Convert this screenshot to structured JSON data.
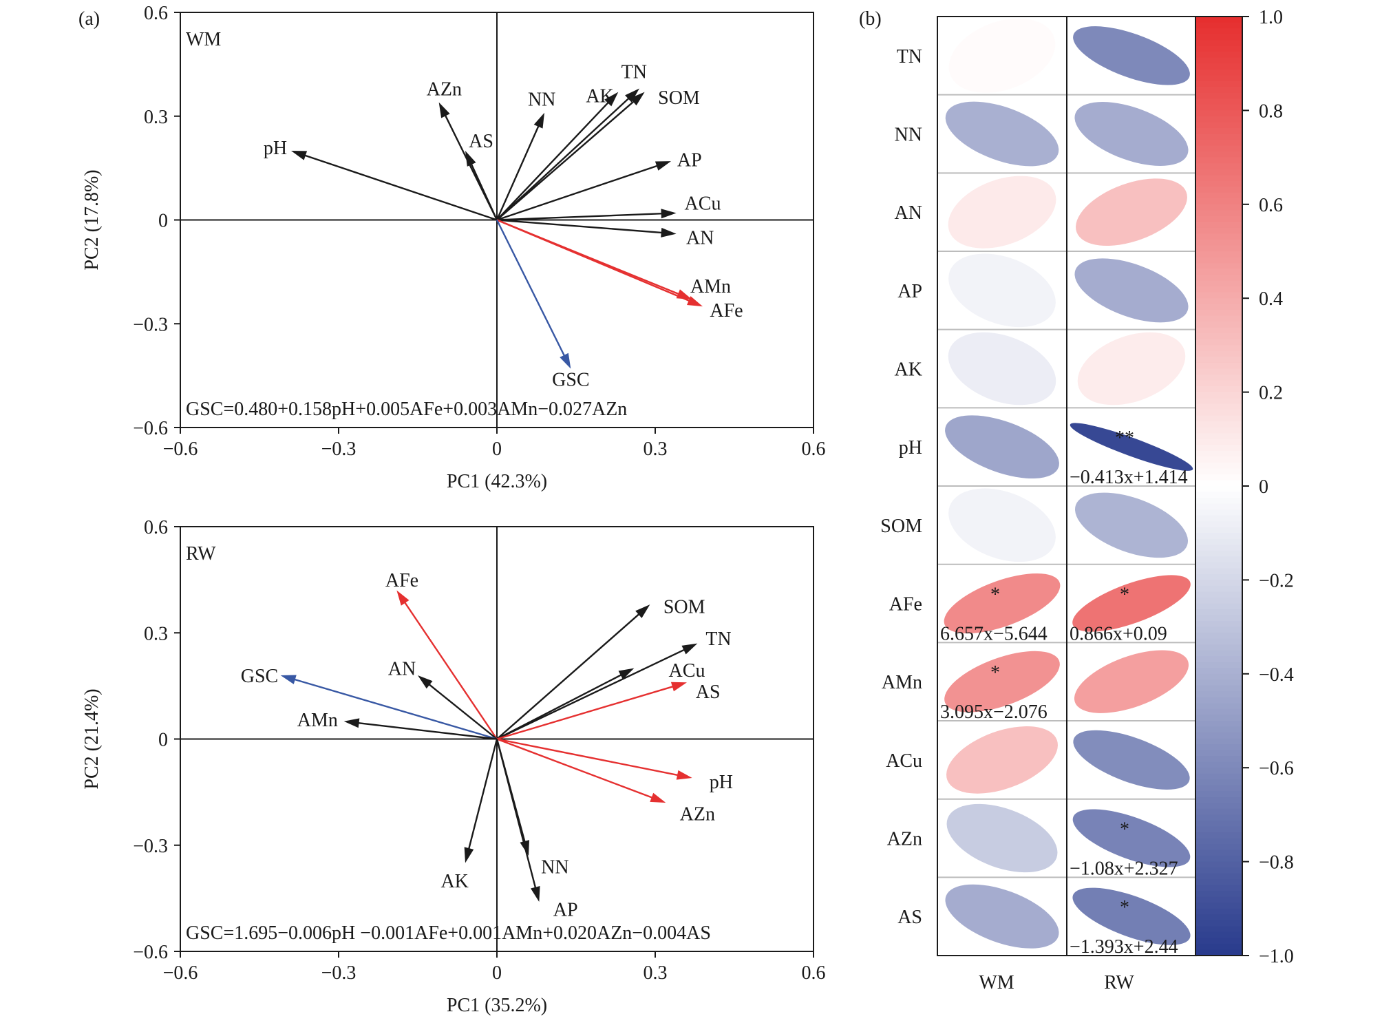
{
  "panel_labels": {
    "a": "(a)",
    "b": "(b)"
  },
  "chart_data": [
    {
      "type": "biplot",
      "panel": "a-top",
      "group_label": "WM",
      "xlabel": "PC1 (42.3%)",
      "ylabel": "PC2 (17.8%)",
      "xlim": [
        -0.6,
        0.6
      ],
      "ylim": [
        -0.6,
        0.6
      ],
      "xticks": [
        {
          "v": -0.6,
          "label": "−0.6"
        },
        {
          "v": -0.3,
          "label": "−0.3"
        },
        {
          "v": 0,
          "label": "0"
        },
        {
          "v": 0.3,
          "label": "0.3"
        },
        {
          "v": 0.6,
          "label": "0.6"
        }
      ],
      "yticks": [
        {
          "v": -0.6,
          "label": "−0.6"
        },
        {
          "v": -0.3,
          "label": "−0.3"
        },
        {
          "v": 0,
          "label": "0"
        },
        {
          "v": 0.3,
          "label": "0.3"
        },
        {
          "v": 0.6,
          "label": "0.6"
        }
      ],
      "equation": "GSC=0.480+0.158pH+0.005AFe+0.003AMn−0.027AZn",
      "vectors": [
        {
          "name": "AZn",
          "x": -0.11,
          "y": 0.34,
          "color": "#1a1a1a",
          "label_x": -0.1,
          "label_y": 0.38
        },
        {
          "name": "AS",
          "x": -0.06,
          "y": 0.2,
          "color": "#1a1a1a",
          "label_x": -0.03,
          "label_y": 0.23
        },
        {
          "name": "pH",
          "x": -0.39,
          "y": 0.2,
          "color": "#1a1a1a",
          "label_x": -0.42,
          "label_y": 0.21
        },
        {
          "name": "NN",
          "x": 0.09,
          "y": 0.31,
          "color": "#1a1a1a",
          "label_x": 0.085,
          "label_y": 0.35
        },
        {
          "name": "AK",
          "x": 0.23,
          "y": 0.37,
          "color": "#1a1a1a",
          "label_x": 0.195,
          "label_y": 0.36
        },
        {
          "name": "TN",
          "x": 0.27,
          "y": 0.38,
          "color": "#1a1a1a",
          "label_x": 0.26,
          "label_y": 0.43
        },
        {
          "name": "SOM",
          "x": 0.28,
          "y": 0.37,
          "color": "#1a1a1a",
          "label_x": 0.345,
          "label_y": 0.355
        },
        {
          "name": "AP",
          "x": 0.33,
          "y": 0.17,
          "color": "#1a1a1a",
          "label_x": 0.365,
          "label_y": 0.175
        },
        {
          "name": "ACu",
          "x": 0.34,
          "y": 0.02,
          "color": "#1a1a1a",
          "label_x": 0.39,
          "label_y": 0.05
        },
        {
          "name": "AN",
          "x": 0.34,
          "y": -0.04,
          "color": "#1a1a1a",
          "label_x": 0.385,
          "label_y": -0.05
        },
        {
          "name": "AMn",
          "x": 0.37,
          "y": -0.23,
          "color": "#e53030",
          "label_x": 0.405,
          "label_y": -0.19
        },
        {
          "name": "AFe",
          "x": 0.39,
          "y": -0.25,
          "color": "#e53030",
          "label_x": 0.435,
          "label_y": -0.26
        },
        {
          "name": "GSC",
          "x": 0.14,
          "y": -0.43,
          "color": "#3858a4",
          "label_x": 0.14,
          "label_y": -0.46
        }
      ]
    },
    {
      "type": "biplot",
      "panel": "a-bottom",
      "group_label": "RW",
      "xlabel": "PC1 (35.2%)",
      "ylabel": "PC2 (21.4%)",
      "xlim": [
        -0.6,
        0.6
      ],
      "ylim": [
        -0.6,
        0.6
      ],
      "xticks": [
        {
          "v": -0.6,
          "label": "−0.6"
        },
        {
          "v": -0.3,
          "label": "−0.3"
        },
        {
          "v": 0,
          "label": "0"
        },
        {
          "v": 0.3,
          "label": "0.3"
        },
        {
          "v": 0.6,
          "label": "0.6"
        }
      ],
      "yticks": [
        {
          "v": -0.6,
          "label": "−0.6"
        },
        {
          "v": -0.3,
          "label": "−0.3"
        },
        {
          "v": 0,
          "label": "0"
        },
        {
          "v": 0.3,
          "label": "0.3"
        },
        {
          "v": 0.6,
          "label": "0.6"
        }
      ],
      "equation": "GSC=1.695−0.006pH −0.001AFe+0.001AMn+0.020AZn−0.004AS",
      "vectors": [
        {
          "name": "AFe",
          "x": -0.19,
          "y": 0.42,
          "color": "#e53030",
          "label_x": -0.18,
          "label_y": 0.45
        },
        {
          "name": "AN",
          "x": -0.15,
          "y": 0.18,
          "color": "#1a1a1a",
          "label_x": -0.18,
          "label_y": 0.2
        },
        {
          "name": "GSC",
          "x": -0.41,
          "y": 0.18,
          "color": "#3858a4",
          "label_x": -0.45,
          "label_y": 0.18
        },
        {
          "name": "AMn",
          "x": -0.29,
          "y": 0.05,
          "color": "#1a1a1a",
          "label_x": -0.34,
          "label_y": 0.055
        },
        {
          "name": "SOM",
          "x": 0.29,
          "y": 0.38,
          "color": "#1a1a1a",
          "label_x": 0.355,
          "label_y": 0.375
        },
        {
          "name": "TN",
          "x": 0.38,
          "y": 0.27,
          "color": "#1a1a1a",
          "label_x": 0.42,
          "label_y": 0.285
        },
        {
          "name": "ACu",
          "x": 0.26,
          "y": 0.2,
          "color": "#1a1a1a",
          "label_x": 0.36,
          "label_y": 0.195
        },
        {
          "name": "AS",
          "x": 0.36,
          "y": 0.16,
          "color": "#e53030",
          "label_x": 0.4,
          "label_y": 0.135
        },
        {
          "name": "pH",
          "x": 0.37,
          "y": -0.11,
          "color": "#e53030",
          "label_x": 0.425,
          "label_y": -0.12
        },
        {
          "name": "AZn",
          "x": 0.32,
          "y": -0.18,
          "color": "#e53030",
          "label_x": 0.38,
          "label_y": -0.21
        },
        {
          "name": "NN",
          "x": 0.06,
          "y": -0.33,
          "color": "#1a1a1a",
          "label_x": 0.11,
          "label_y": -0.36
        },
        {
          "name": "AP",
          "x": 0.08,
          "y": -0.46,
          "color": "#1a1a1a",
          "label_x": 0.13,
          "label_y": -0.48
        },
        {
          "name": "AK",
          "x": -0.06,
          "y": -0.35,
          "color": "#1a1a1a",
          "label_x": -0.08,
          "label_y": -0.4
        }
      ]
    },
    {
      "type": "heatmap",
      "panel": "b",
      "style": "ellipse-correlation",
      "columns": [
        "WM",
        "RW"
      ],
      "rows": [
        "TN",
        "NN",
        "AN",
        "AP",
        "AK",
        "pH",
        "SOM",
        "AFe",
        "AMn",
        "ACu",
        "AZn",
        "AS"
      ],
      "values": [
        [
          0.02,
          -0.6
        ],
        [
          -0.4,
          -0.42
        ],
        [
          0.1,
          0.3
        ],
        [
          -0.06,
          -0.42
        ],
        [
          -0.09,
          0.09
        ],
        [
          -0.45,
          -0.93
        ],
        [
          -0.06,
          -0.38
        ],
        [
          0.56,
          0.67
        ],
        [
          0.52,
          0.46
        ],
        [
          0.3,
          -0.58
        ],
        [
          -0.26,
          -0.63
        ],
        [
          -0.42,
          -0.65
        ]
      ],
      "significance": [
        [
          "",
          ""
        ],
        [
          "",
          ""
        ],
        [
          "",
          ""
        ],
        [
          "",
          ""
        ],
        [
          "",
          ""
        ],
        [
          "",
          "**"
        ],
        [
          "",
          ""
        ],
        [
          "*",
          "*"
        ],
        [
          "*",
          ""
        ],
        [
          "",
          ""
        ],
        [
          "",
          "*"
        ],
        [
          "",
          "*"
        ]
      ],
      "regressions": [
        [
          "",
          ""
        ],
        [
          "",
          ""
        ],
        [
          "",
          ""
        ],
        [
          "",
          ""
        ],
        [
          "",
          ""
        ],
        [
          "",
          "−0.413x+1.414"
        ],
        [
          "",
          ""
        ],
        [
          "6.657x−5.644",
          "0.866x+0.09"
        ],
        [
          "3.095x−2.076",
          ""
        ],
        [
          "",
          ""
        ],
        [
          "",
          "−1.08x+2.327"
        ],
        [
          "",
          "−1.393x+2.44"
        ]
      ],
      "colorbar": {
        "range": [
          -1.0,
          1.0
        ],
        "ticks": [
          {
            "v": 1.0,
            "label": "1.0"
          },
          {
            "v": 0.8,
            "label": "0.8"
          },
          {
            "v": 0.6,
            "label": "0.6"
          },
          {
            "v": 0.4,
            "label": "0.4"
          },
          {
            "v": 0.2,
            "label": "0.2"
          },
          {
            "v": 0,
            "label": "0"
          },
          {
            "v": -0.2,
            "label": "−0.2"
          },
          {
            "v": -0.4,
            "label": "−0.4"
          },
          {
            "v": -0.6,
            "label": "−0.6"
          },
          {
            "v": -0.8,
            "label": "−0.8"
          },
          {
            "v": -1.0,
            "label": "−1.0"
          }
        ],
        "positive_color": "#e62e2e",
        "negative_color": "#283a8c",
        "zero_color": "#ffffff"
      }
    }
  ]
}
